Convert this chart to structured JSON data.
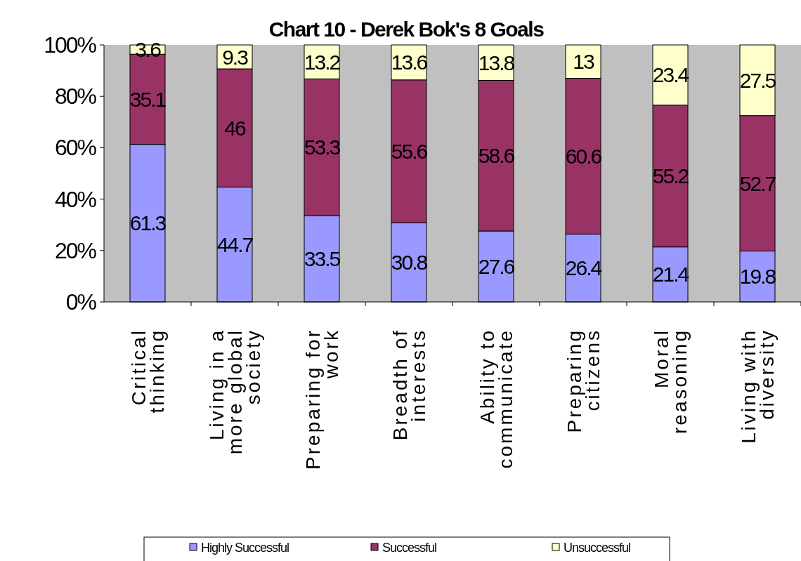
{
  "chart_data": {
    "type": "bar",
    "title": "Chart 10 - Derek Bok's 8 Goals",
    "stacked": true,
    "data_labels": true,
    "legend": "bottom",
    "categories": [
      "Critical thinking",
      "Living in a more global society",
      "Preparing for work",
      "Breadth of interests",
      "Ability to communicate",
      "Preparing citizens",
      "Moral reasoning",
      "Living with diversity"
    ],
    "series": [
      {
        "name": "Highly Successful",
        "color": "#9999ff",
        "values": [
          61.3,
          44.7,
          33.5,
          30.8,
          27.6,
          26.4,
          21.4,
          19.8
        ]
      },
      {
        "name": "Successful",
        "color": "#993366",
        "values": [
          35.1,
          46,
          53.3,
          55.6,
          58.6,
          60.6,
          55.2,
          52.7
        ]
      },
      {
        "name": "Unsuccessful",
        "color": "#ffffcc",
        "values": [
          3.6,
          9.3,
          13.2,
          13.6,
          13.8,
          13,
          23.4,
          27.5
        ]
      }
    ],
    "ylim": [
      0,
      100
    ],
    "yticks": [
      {
        "value": 0,
        "label": "0%"
      },
      {
        "value": 20,
        "label": "20%"
      },
      {
        "value": 40,
        "label": "40%"
      },
      {
        "value": 60,
        "label": "60%"
      },
      {
        "value": 80,
        "label": "80%"
      },
      {
        "value": 100,
        "label": "100%"
      }
    ]
  }
}
